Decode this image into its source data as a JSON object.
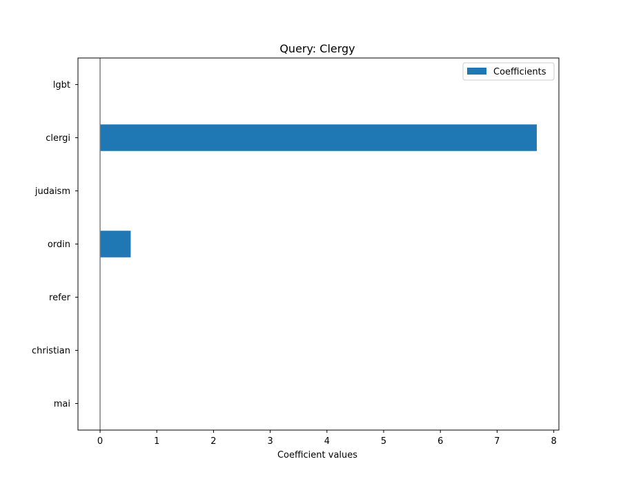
{
  "chart_data": {
    "type": "bar",
    "orientation": "horizontal",
    "title": "Query: Clergy",
    "xlabel": "Coefficient values",
    "ylabel": "",
    "categories": [
      "lgbt",
      "clergi",
      "judaism",
      "ordin",
      "refer",
      "christian",
      "mai"
    ],
    "series": [
      {
        "name": "Coefficients",
        "values": [
          0,
          7.7,
          0,
          0.54,
          0,
          0,
          0
        ],
        "color": "#1f77b4"
      }
    ],
    "xlim": [
      -0.39,
      8.09
    ],
    "xticks": [
      0,
      1,
      2,
      3,
      4,
      5,
      6,
      7,
      8
    ],
    "zero_line": true,
    "zero_line_color": "#808080",
    "grid": false,
    "legend_position": "top-right"
  }
}
